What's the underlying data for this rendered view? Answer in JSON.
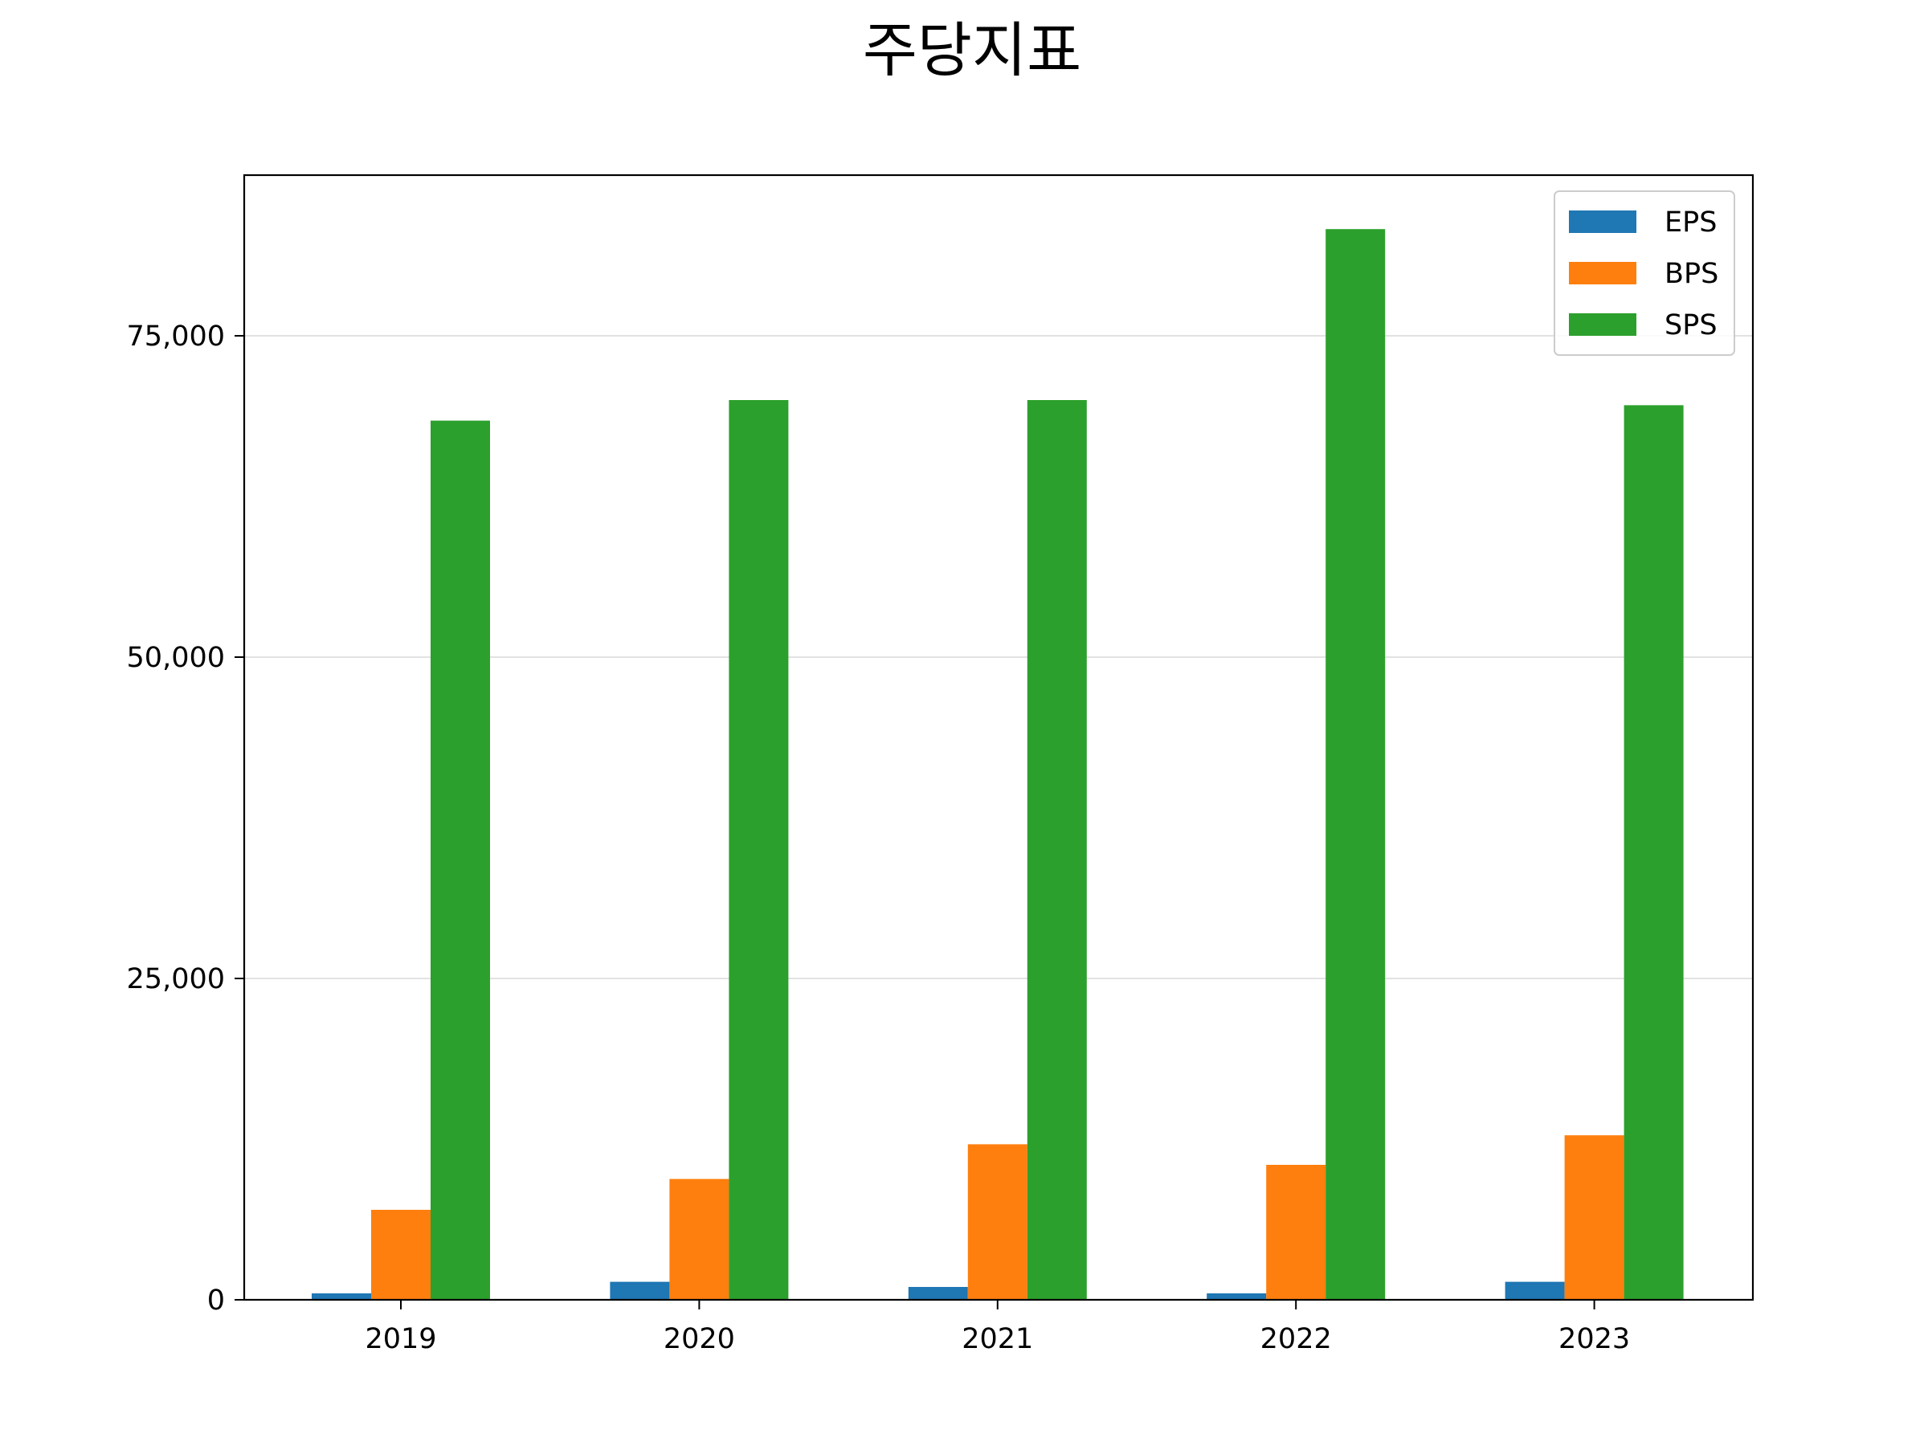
{
  "chart_data": {
    "type": "bar",
    "title": "주당지표",
    "xlabel": "",
    "ylabel": "",
    "categories": [
      "2019",
      "2020",
      "2021",
      "2022",
      "2023"
    ],
    "series": [
      {
        "name": "EPS",
        "color": "#1f77b4",
        "values": [
          500,
          1400,
          1000,
          500,
          1400
        ]
      },
      {
        "name": "BPS",
        "color": "#ff7f0e",
        "values": [
          7000,
          9400,
          12100,
          10500,
          12800
        ]
      },
      {
        "name": "SPS",
        "color": "#2ca02c",
        "values": [
          68400,
          70000,
          70000,
          83300,
          69600
        ]
      }
    ],
    "ylim": [
      0,
      87500
    ],
    "yticks": [
      0,
      25000,
      50000,
      75000
    ],
    "ytick_labels": [
      "0",
      "25,000",
      "50,000",
      "75,000"
    ],
    "grid": "y-major",
    "legend_position": "upper-right"
  }
}
